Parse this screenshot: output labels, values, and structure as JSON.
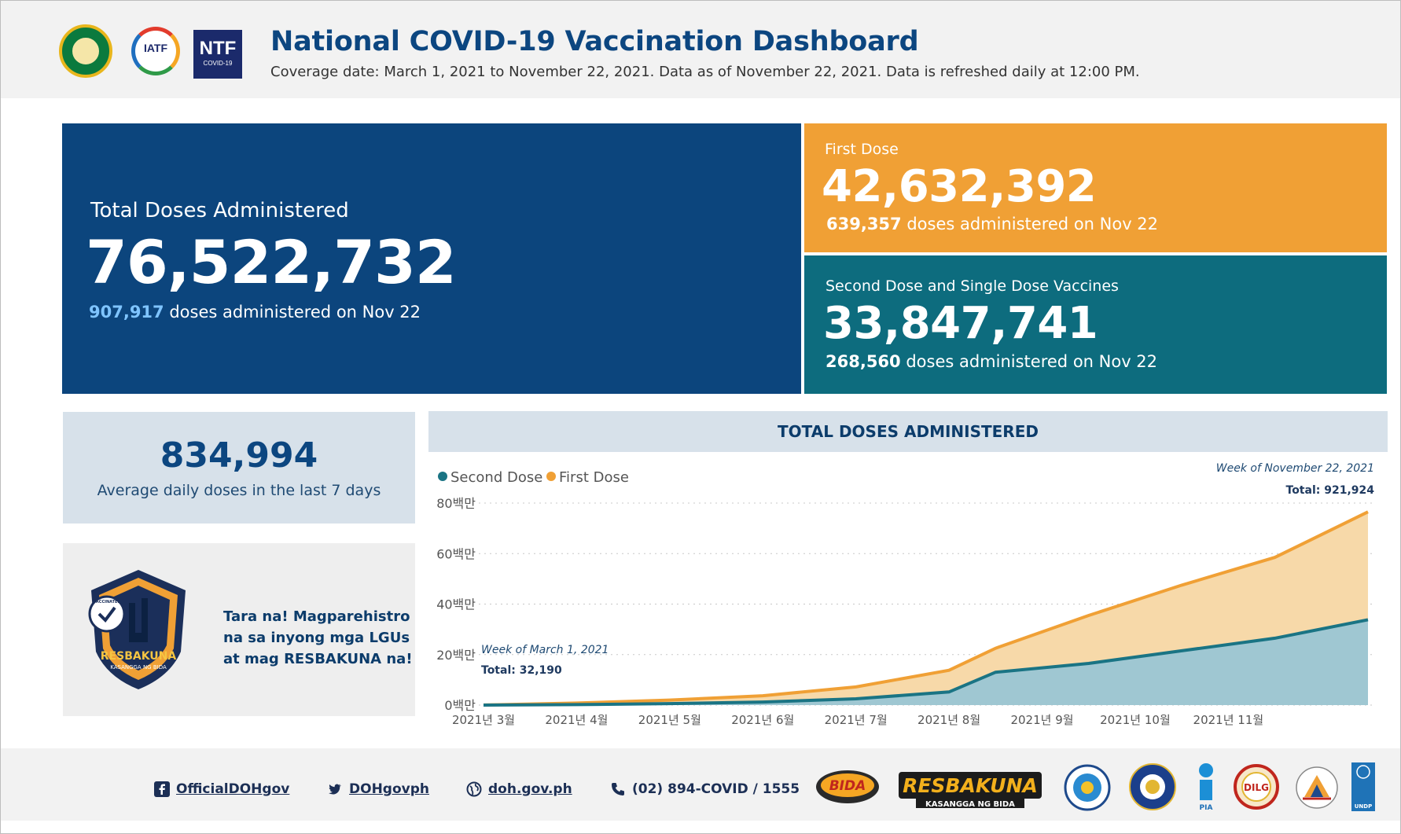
{
  "header": {
    "title": "National COVID-19 Vaccination Dashboard",
    "subtitle": "Coverage date: March 1, 2021 to November 22, 2021. Data as of November 22, 2021. Data is refreshed daily at 12:00 PM.",
    "logos": {
      "iatf": "IATF",
      "ntf_big": "NTF",
      "ntf_small": "COVID-19"
    }
  },
  "kpis": {
    "total": {
      "label": "Total Doses Administered",
      "value": "76,522,732",
      "daily": "907,917",
      "daily_suffix": " doses administered on Nov 22"
    },
    "first": {
      "label": "First Dose",
      "value": "42,632,392",
      "daily": "639,357",
      "daily_suffix": " doses administered on Nov 22"
    },
    "second": {
      "label": "Second Dose and Single Dose Vaccines",
      "value": "33,847,741",
      "daily": "268,560",
      "daily_suffix": " doses administered on Nov 22"
    }
  },
  "average": {
    "value": "834,994",
    "label": "Average daily doses in the last 7 days"
  },
  "promo": {
    "line1": "Tara na! Magparehistro",
    "line2": "na sa inyong mga LGUs",
    "line3": "at mag RESBAKUNA na!",
    "badge_text": "RESBAKUNA",
    "badge_sub": "KASANGGA NG BIDA",
    "vaccinated": "VACCINATED"
  },
  "chart_data": {
    "type": "area",
    "title": "TOTAL DOSES ADMINISTERED",
    "legend": [
      {
        "name": "Second Dose",
        "color": "#1a7484"
      },
      {
        "name": "First Dose",
        "color": "#f0a035"
      }
    ],
    "y_ticks": [
      "0백만",
      "20백만",
      "40백만",
      "60백만",
      "80백만"
    ],
    "ylim": [
      0,
      80
    ],
    "x_ticks": [
      "2021년 3월",
      "2021년 4월",
      "2021년 5월",
      "2021년 6월",
      "2021년 7월",
      "2021년 8월",
      "2021년 9월",
      "2021년 10월",
      "2021년 11월"
    ],
    "week_index": [
      0,
      4,
      8,
      12,
      16,
      20,
      24,
      28,
      32,
      36
    ],
    "series": [
      {
        "name": "Total",
        "values": [
          0.03,
          0.8,
          2.0,
          3.7,
          7.2,
          13.8,
          22.5,
          35.5,
          47.5,
          58.5,
          76.5
        ]
      },
      {
        "name": "Second Dose",
        "values": [
          0.0,
          0.2,
          0.6,
          1.2,
          2.5,
          5.2,
          13.0,
          16.5,
          21.5,
          26.5,
          33.8
        ]
      }
    ],
    "series_x": [
      0,
      4,
      8,
      12,
      16,
      20,
      22,
      26,
      30,
      34,
      38
    ],
    "annotations": {
      "start_week": "Week of March 1, 2021",
      "start_total": "Total: 32,190",
      "end_week": "Week of November 22, 2021",
      "end_total": "Total: 921,924"
    }
  },
  "footer": {
    "facebook": "OfficialDOHgov",
    "twitter": "DOHgovph",
    "website": "doh.gov.ph",
    "phone": "(02) 894-COVID / 1555",
    "logos": {
      "bida": "BIDA",
      "resbakuna": "RESBAKUNA",
      "resbakuna_sub": "KASANGGA NG BIDA",
      "pia": "PIA",
      "dilg": "DILG",
      "undp": "UNDP"
    }
  },
  "colors": {
    "navy": "#0c457d",
    "orange": "#f0a035",
    "teal": "#0d6c7e",
    "panel": "#d7e1ea"
  }
}
